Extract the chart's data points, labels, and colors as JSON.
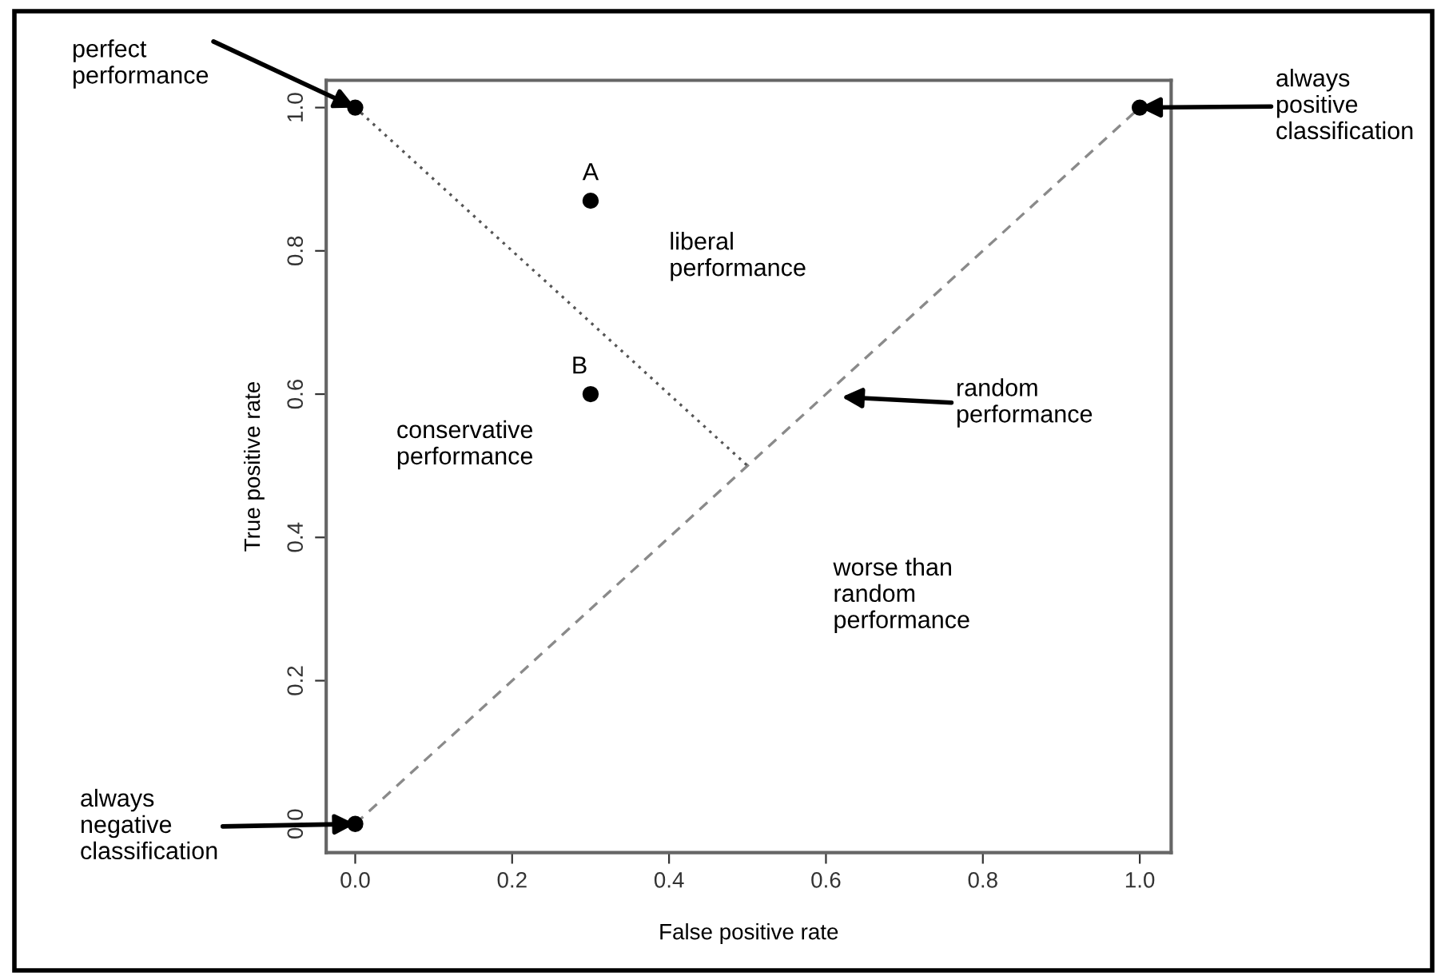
{
  "chart_data": {
    "type": "scatter",
    "xlabel": "False positive rate",
    "ylabel": "True positive rate",
    "xlim": [
      -0.037,
      1.04
    ],
    "ylim": [
      -0.04,
      1.038
    ],
    "xticks": [
      {
        "value": 0,
        "label": "0.0"
      },
      0.2,
      0.4,
      0.6,
      0.8,
      {
        "value": 1,
        "label": "1.0"
      }
    ],
    "yticks": [
      {
        "value": 0,
        "label": "0.0"
      },
      0.2,
      0.4,
      0.6,
      0.8,
      {
        "value": 1,
        "label": "1.0"
      }
    ],
    "series": [
      {
        "type": "line",
        "x": [
          0,
          1
        ],
        "values": [
          0,
          1
        ],
        "color": "#8a8a8a",
        "line_style": "dashed",
        "marker": "none"
      },
      {
        "type": "line",
        "x": [
          0,
          0.5
        ],
        "values": [
          1,
          0.5
        ],
        "color": "#555555",
        "line_style": "dotted",
        "marker": "none"
      },
      {
        "x": [
          0,
          1,
          0,
          0.3,
          0.3
        ],
        "values": [
          0,
          1,
          1,
          0.87,
          0.6
        ],
        "color": "#000000",
        "marker": "circle"
      }
    ],
    "annotations": [
      {
        "text": "perfect\nperformance",
        "x": 0,
        "y": 1
      },
      {
        "text": "always\npositive\nclassification",
        "x": 1,
        "y": 1
      },
      {
        "text": "always\nnegative\nclassification",
        "x": 0,
        "y": 0
      },
      "random\nperformance",
      {
        "text": "A",
        "x": 0.3,
        "y": 0.87
      },
      {
        "text": "B",
        "x": 0.3,
        "y": 0.6
      },
      "liberal\nperformance",
      "conservative\nperformance",
      "worse than\nrandom\nperformance"
    ]
  }
}
